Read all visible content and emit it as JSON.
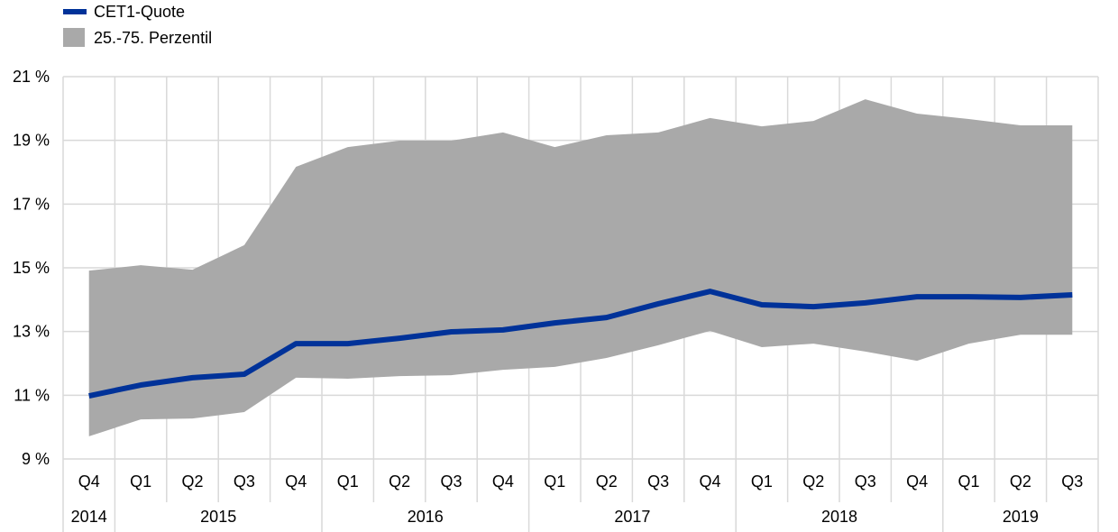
{
  "chart_data": {
    "type": "area",
    "title": "",
    "xlabel": "",
    "ylabel": "",
    "ylim": [
      9,
      21
    ],
    "y_ticks": [
      "9 %",
      "11 %",
      "13 %",
      "15 %",
      "17 %",
      "19 %",
      "21 %"
    ],
    "y_tick_values": [
      9,
      11,
      13,
      15,
      17,
      19,
      21
    ],
    "grid": true,
    "legend_position": "top-left",
    "legend": [
      {
        "label": "CET1-Quote",
        "kind": "line",
        "color": "#003299"
      },
      {
        "label": "25.-75. Perzentil",
        "kind": "band",
        "color": "#a9a9a9"
      }
    ],
    "quarters": [
      "Q4",
      "Q1",
      "Q2",
      "Q3",
      "Q4",
      "Q1",
      "Q2",
      "Q3",
      "Q4",
      "Q1",
      "Q2",
      "Q3",
      "Q4",
      "Q1",
      "Q2",
      "Q3",
      "Q4",
      "Q1",
      "Q2",
      "Q3"
    ],
    "years": [
      {
        "label": "2014",
        "count": 1
      },
      {
        "label": "2015",
        "count": 4
      },
      {
        "label": "2016",
        "count": 4
      },
      {
        "label": "2017",
        "count": 4
      },
      {
        "label": "2018",
        "count": 4
      },
      {
        "label": "2019",
        "count": 3
      }
    ],
    "series": [
      {
        "name": "CET1-Quote",
        "values": [
          10.98,
          11.32,
          11.55,
          11.66,
          12.62,
          12.62,
          12.79,
          12.99,
          13.05,
          13.27,
          13.44,
          13.87,
          14.26,
          13.84,
          13.78,
          13.9,
          14.09,
          14.09,
          14.07,
          14.15
        ]
      },
      {
        "name": "25.-75. Perzentil",
        "lower": [
          9.71,
          10.24,
          10.27,
          10.47,
          11.55,
          11.52,
          11.6,
          11.63,
          11.8,
          11.89,
          12.17,
          12.57,
          13.02,
          12.51,
          12.62,
          12.37,
          12.08,
          12.62,
          12.9,
          12.9
        ],
        "upper": [
          14.91,
          15.08,
          14.94,
          15.71,
          18.17,
          18.79,
          18.99,
          18.99,
          19.25,
          18.79,
          19.16,
          19.25,
          19.7,
          19.44,
          19.61,
          20.29,
          19.84,
          19.67,
          19.47,
          19.47
        ]
      }
    ]
  }
}
